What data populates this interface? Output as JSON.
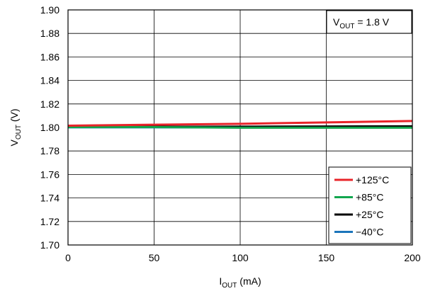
{
  "chart_data": {
    "type": "line",
    "xlabel": {
      "main": "I",
      "sub": "OUT",
      "rest": " (mA)"
    },
    "ylabel": {
      "main": "V",
      "sub": "OUT",
      "rest": " (V)"
    },
    "xlim": [
      0,
      200
    ],
    "ylim": [
      1.7,
      1.9
    ],
    "xticks": [
      0,
      50,
      100,
      150,
      200
    ],
    "yticks": [
      1.7,
      1.72,
      1.74,
      1.76,
      1.78,
      1.8,
      1.82,
      1.84,
      1.86,
      1.88,
      1.9
    ],
    "xtick_labels": [
      "0",
      "50",
      "100",
      "150",
      "200"
    ],
    "ytick_labels": [
      "1.70",
      "1.72",
      "1.74",
      "1.76",
      "1.78",
      "1.80",
      "1.82",
      "1.84",
      "1.86",
      "1.88",
      "1.90"
    ],
    "grid": true,
    "annotation": {
      "main": "V",
      "sub": "OUT",
      "rest": " = 1.8 V"
    },
    "legend_position": "bottom-right",
    "series": [
      {
        "name": "+125°C",
        "color": "#e8242a",
        "x": [
          0,
          50,
          100,
          150,
          200
        ],
        "y": [
          1.8015,
          1.8023,
          1.8031,
          1.8043,
          1.8055
        ]
      },
      {
        "name": "+85°C",
        "color": "#12a64e",
        "x": [
          0,
          50,
          100,
          150,
          200
        ],
        "y": [
          1.8003,
          1.8003,
          1.7998,
          1.7998,
          1.7998
        ]
      },
      {
        "name": "+25°C",
        "color": "#000000",
        "x": [
          0,
          50,
          100,
          150,
          200
        ],
        "y": [
          1.8005,
          1.8006,
          1.8007,
          1.8008,
          1.801
        ]
      },
      {
        "name": "−40°C",
        "color": "#1b75bb",
        "x": [
          0,
          50,
          100,
          150,
          200
        ],
        "y": [
          1.8001,
          1.8001,
          1.8001,
          1.8001,
          1.8001
        ]
      }
    ]
  }
}
